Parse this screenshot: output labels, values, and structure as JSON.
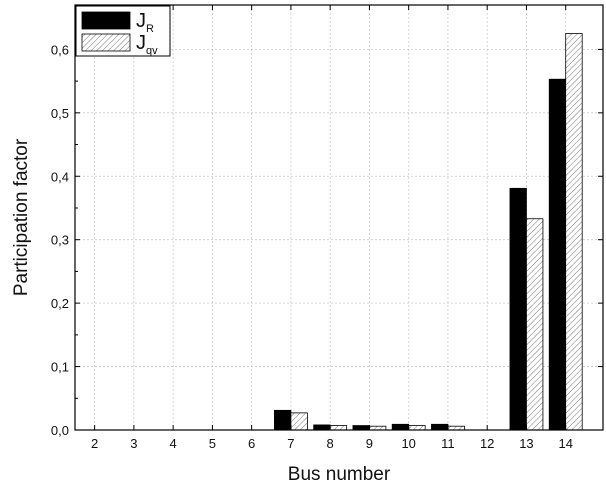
{
  "chart_data": {
    "type": "bar",
    "xlabel": "Bus number",
    "ylabel": "Participation factor",
    "categories": [
      "2",
      "3",
      "4",
      "5",
      "6",
      "7",
      "8",
      "9",
      "10",
      "11",
      "12",
      "13",
      "14"
    ],
    "series": [
      {
        "name": "J_R",
        "name_main": "J",
        "name_sub": "R",
        "color": "#000000",
        "pattern": "solid",
        "values": [
          0,
          0,
          0,
          0,
          0,
          0.031,
          0.008,
          0.007,
          0.009,
          0.009,
          0,
          0.381,
          0.553
        ]
      },
      {
        "name": "J_qv",
        "name_main": "J",
        "name_sub": "qv",
        "color": "#ffffff",
        "pattern": "hatched",
        "values": [
          0,
          0,
          0,
          0,
          0,
          0.027,
          0.007,
          0.006,
          0.007,
          0.006,
          0,
          0.333,
          0.625
        ]
      }
    ],
    "ylim": [
      0,
      0.67
    ],
    "yticks": [
      0.0,
      0.1,
      0.2,
      0.3,
      0.4,
      0.5,
      0.6
    ],
    "ytick_labels": [
      "0,0",
      "0,1",
      "0,2",
      "0,3",
      "0,4",
      "0,5",
      "0,6"
    ],
    "grid": true,
    "legend_position": "top-left"
  }
}
